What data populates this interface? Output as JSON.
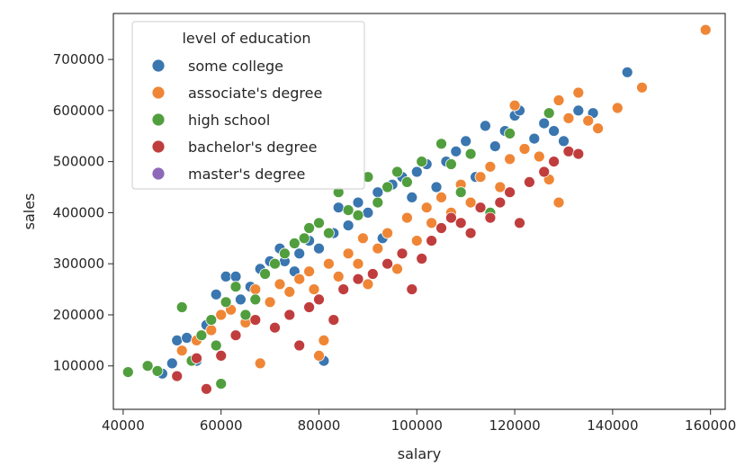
{
  "chart_data": {
    "type": "scatter",
    "title": "",
    "xlabel": "salary",
    "ylabel": "sales",
    "xlim": [
      38000,
      163000
    ],
    "ylim": [
      15000,
      790000
    ],
    "xticks": [
      40000,
      60000,
      80000,
      100000,
      120000,
      140000,
      160000
    ],
    "yticks": [
      100000,
      200000,
      300000,
      400000,
      500000,
      600000,
      700000
    ],
    "xtick_labels": [
      "40000",
      "60000",
      "80000",
      "100000",
      "120000",
      "140000",
      "160000"
    ],
    "ytick_labels": [
      "100000",
      "200000",
      "300000",
      "400000",
      "500000",
      "600000",
      "700000"
    ],
    "grid": false,
    "legend": {
      "title": "level of education",
      "placement": "top-left"
    },
    "series": [
      {
        "name": "some college",
        "color": "#3a76af",
        "points": [
          [
            48000,
            85000
          ],
          [
            50000,
            105000
          ],
          [
            51000,
            150000
          ],
          [
            53000,
            155000
          ],
          [
            55000,
            110000
          ],
          [
            57000,
            180000
          ],
          [
            59000,
            240000
          ],
          [
            61000,
            275000
          ],
          [
            63000,
            275000
          ],
          [
            64000,
            230000
          ],
          [
            66000,
            255000
          ],
          [
            68000,
            290000
          ],
          [
            70000,
            305000
          ],
          [
            72000,
            330000
          ],
          [
            73000,
            305000
          ],
          [
            75000,
            285000
          ],
          [
            76000,
            320000
          ],
          [
            78000,
            345000
          ],
          [
            80000,
            330000
          ],
          [
            81000,
            110000
          ],
          [
            83000,
            360000
          ],
          [
            84000,
            410000
          ],
          [
            86000,
            375000
          ],
          [
            88000,
            420000
          ],
          [
            90000,
            400000
          ],
          [
            92000,
            440000
          ],
          [
            93000,
            350000
          ],
          [
            95000,
            455000
          ],
          [
            97000,
            470000
          ],
          [
            99000,
            430000
          ],
          [
            100000,
            480000
          ],
          [
            102000,
            495000
          ],
          [
            104000,
            450000
          ],
          [
            106000,
            500000
          ],
          [
            108000,
            520000
          ],
          [
            110000,
            540000
          ],
          [
            112000,
            470000
          ],
          [
            114000,
            570000
          ],
          [
            116000,
            530000
          ],
          [
            118000,
            560000
          ],
          [
            120000,
            590000
          ],
          [
            121000,
            600000
          ],
          [
            124000,
            545000
          ],
          [
            126000,
            575000
          ],
          [
            128000,
            560000
          ],
          [
            130000,
            540000
          ],
          [
            133000,
            600000
          ],
          [
            136000,
            595000
          ],
          [
            143000,
            675000
          ]
        ]
      },
      {
        "name": "associate's degree",
        "color": "#ef8636",
        "points": [
          [
            52000,
            130000
          ],
          [
            55000,
            150000
          ],
          [
            58000,
            170000
          ],
          [
            60000,
            200000
          ],
          [
            62000,
            210000
          ],
          [
            65000,
            185000
          ],
          [
            67000,
            250000
          ],
          [
            68000,
            105000
          ],
          [
            70000,
            225000
          ],
          [
            72000,
            260000
          ],
          [
            74000,
            245000
          ],
          [
            76000,
            270000
          ],
          [
            78000,
            285000
          ],
          [
            79000,
            250000
          ],
          [
            80000,
            120000
          ],
          [
            81000,
            150000
          ],
          [
            82000,
            300000
          ],
          [
            84000,
            275000
          ],
          [
            86000,
            320000
          ],
          [
            88000,
            300000
          ],
          [
            89000,
            350000
          ],
          [
            90000,
            260000
          ],
          [
            92000,
            330000
          ],
          [
            94000,
            360000
          ],
          [
            96000,
            290000
          ],
          [
            98000,
            390000
          ],
          [
            100000,
            345000
          ],
          [
            102000,
            410000
          ],
          [
            103000,
            380000
          ],
          [
            105000,
            430000
          ],
          [
            107000,
            400000
          ],
          [
            109000,
            455000
          ],
          [
            111000,
            420000
          ],
          [
            113000,
            470000
          ],
          [
            115000,
            490000
          ],
          [
            117000,
            450000
          ],
          [
            119000,
            505000
          ],
          [
            120000,
            610000
          ],
          [
            122000,
            525000
          ],
          [
            125000,
            510000
          ],
          [
            127000,
            465000
          ],
          [
            129000,
            620000
          ],
          [
            129000,
            420000
          ],
          [
            131000,
            585000
          ],
          [
            133000,
            635000
          ],
          [
            135000,
            580000
          ],
          [
            137000,
            565000
          ],
          [
            141000,
            605000
          ],
          [
            146000,
            645000
          ],
          [
            159000,
            758000
          ]
        ]
      },
      {
        "name": "high school",
        "color": "#519e3e",
        "points": [
          [
            41000,
            88000
          ],
          [
            45000,
            100000
          ],
          [
            47000,
            90000
          ],
          [
            52000,
            215000
          ],
          [
            54000,
            110000
          ],
          [
            56000,
            160000
          ],
          [
            58000,
            190000
          ],
          [
            59000,
            140000
          ],
          [
            60000,
            65000
          ],
          [
            61000,
            225000
          ],
          [
            63000,
            255000
          ],
          [
            65000,
            200000
          ],
          [
            67000,
            230000
          ],
          [
            69000,
            280000
          ],
          [
            71000,
            300000
          ],
          [
            73000,
            320000
          ],
          [
            75000,
            340000
          ],
          [
            77000,
            350000
          ],
          [
            78000,
            370000
          ],
          [
            80000,
            380000
          ],
          [
            82000,
            360000
          ],
          [
            84000,
            440000
          ],
          [
            86000,
            405000
          ],
          [
            88000,
            395000
          ],
          [
            90000,
            470000
          ],
          [
            92000,
            420000
          ],
          [
            94000,
            450000
          ],
          [
            96000,
            480000
          ],
          [
            98000,
            460000
          ],
          [
            101000,
            500000
          ],
          [
            105000,
            535000
          ],
          [
            107000,
            495000
          ],
          [
            109000,
            440000
          ],
          [
            111000,
            515000
          ],
          [
            115000,
            400000
          ],
          [
            119000,
            555000
          ],
          [
            127000,
            595000
          ]
        ]
      },
      {
        "name": "bachelor's degree",
        "color": "#c03d3e",
        "points": [
          [
            51000,
            80000
          ],
          [
            55000,
            115000
          ],
          [
            57000,
            55000
          ],
          [
            60000,
            120000
          ],
          [
            63000,
            160000
          ],
          [
            67000,
            190000
          ],
          [
            71000,
            175000
          ],
          [
            74000,
            200000
          ],
          [
            76000,
            140000
          ],
          [
            78000,
            215000
          ],
          [
            80000,
            230000
          ],
          [
            83000,
            190000
          ],
          [
            85000,
            250000
          ],
          [
            88000,
            270000
          ],
          [
            91000,
            280000
          ],
          [
            94000,
            300000
          ],
          [
            97000,
            320000
          ],
          [
            99000,
            250000
          ],
          [
            101000,
            310000
          ],
          [
            103000,
            345000
          ],
          [
            105000,
            370000
          ],
          [
            107000,
            390000
          ],
          [
            109000,
            380000
          ],
          [
            111000,
            360000
          ],
          [
            113000,
            410000
          ],
          [
            115000,
            390000
          ],
          [
            117000,
            420000
          ],
          [
            119000,
            440000
          ],
          [
            121000,
            380000
          ],
          [
            123000,
            460000
          ],
          [
            126000,
            480000
          ],
          [
            128000,
            500000
          ],
          [
            131000,
            520000
          ],
          [
            133000,
            515000
          ]
        ]
      },
      {
        "name": "master's degree",
        "color": "#8d69b8",
        "points": []
      }
    ]
  }
}
